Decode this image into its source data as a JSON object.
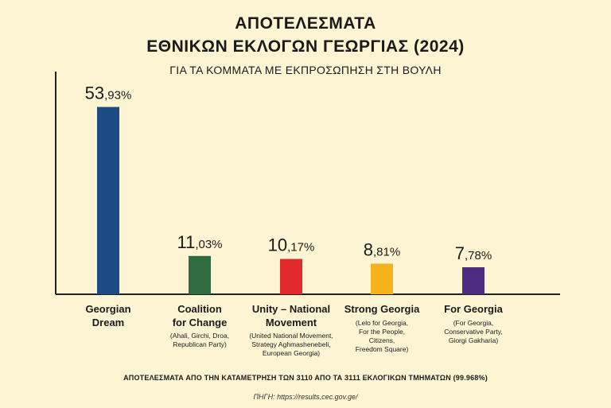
{
  "header": {
    "title_line1": "ΑΠΟΤΕΛΕΣΜΑΤΑ",
    "title_line2": "ΕΘΝΙΚΩΝ ΕΚΛΟΓΩΝ ΓΕΩΡΓΙΑΣ (2024)",
    "subtitle": "ΓΙΑ ΤΑ ΚΟΜΜΑΤΑ ΜΕ ΕΚΠΡΟΣΩΠΗΣΗ ΣΤΗ ΒΟΥΛΗ"
  },
  "chart_data": {
    "type": "bar",
    "title": "ΑΠΟΤΕΛΕΣΜΑΤΑ ΕΘΝΙΚΩΝ ΕΚΛΟΓΩΝ ΓΕΩΡΓΙΑΣ (2024)",
    "subtitle": "ΓΙΑ ΤΑ ΚΟΜΜΑΤΑ ΜΕ ΕΚΠΡΟΣΩΠΗΣΗ ΣΤΗ ΒΟΥΛΗ",
    "categories": [
      "Georgian Dream",
      "Coalition for Change",
      "Unity – National Movement",
      "Strong Georgia",
      "For Georgia"
    ],
    "values": [
      53.93,
      11.03,
      10.17,
      8.81,
      7.78
    ],
    "value_labels": [
      {
        "int": "53",
        "dec": ",93%"
      },
      {
        "int": "11",
        "dec": ",03%"
      },
      {
        "int": "10",
        "dec": ",17%"
      },
      {
        "int": "8",
        "dec": ",81%"
      },
      {
        "int": "7",
        "dec": ",78%"
      }
    ],
    "colors": [
      "#1c4a84",
      "#2f6b3f",
      "#e3292b",
      "#f7b11a",
      "#4c2d81"
    ],
    "ylim": [
      0,
      60
    ],
    "grid": false,
    "xlabel": "",
    "ylabel": ""
  },
  "labels": [
    {
      "name_lines": [
        "Georgian",
        "Dream"
      ],
      "detail_lines": []
    },
    {
      "name_lines": [
        "Coalition",
        "for Change"
      ],
      "detail_lines": [
        "(Ahali, Girchi, Droa,",
        "Republican Party)"
      ]
    },
    {
      "name_lines": [
        "Unity – National",
        "Movement"
      ],
      "detail_lines": [
        "(United National Movement,",
        "Strategy Aghmashenebeli,",
        "European Georgia)"
      ]
    },
    {
      "name_lines": [
        "Strong Georgia"
      ],
      "detail_lines": [
        "(Lelo for Georgia,",
        "For the People,",
        "Citizens,",
        "Freedom Square)"
      ]
    },
    {
      "name_lines": [
        "For Georgia"
      ],
      "detail_lines": [
        "(For Georgia,",
        "Conservative Party,",
        "Giorgi Gakharia)"
      ]
    }
  ],
  "footer": {
    "note": "ΑΠΟΤΕΛΕΣΜΑΤΑ ΑΠΟ ΤΗΝ ΚΑΤΑΜΕΤΡΗΣΗ ΤΩΝ 3110 ΑΠΟ ΤΑ 3111 ΕΚΛΟΓΙΚΩΝ ΤΜΗΜΑΤΩΝ  (99.968%)",
    "source": "ΠΗΓΗ: https://results.cec.gov.ge/"
  }
}
